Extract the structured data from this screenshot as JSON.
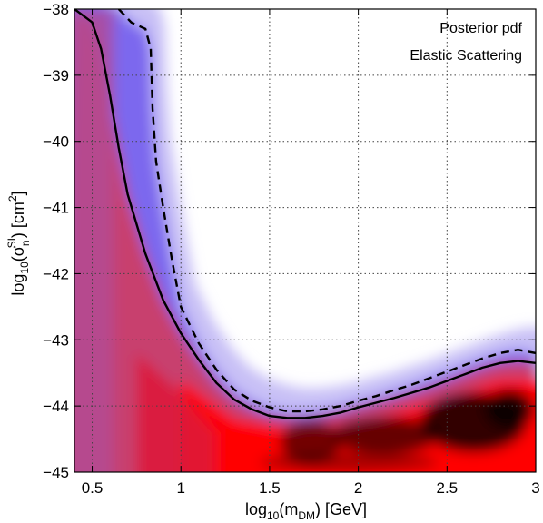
{
  "chart_data": {
    "type": "heatmap",
    "title": "",
    "annotations": [
      "Posterior pdf",
      "Elastic Scattering"
    ],
    "xlabel": {
      "prefix": "log",
      "sub1": "10",
      "mid": "(m",
      "sub2": "DM",
      "suffix": ") [GeV]"
    },
    "ylabel": {
      "prefix": "log",
      "sub1": "10",
      "mid": "(σ",
      "sub2": "n",
      "sup2": "SI",
      "suffix": ") [cm",
      "sup3": "2",
      "end": "]"
    },
    "xlim": [
      0.4,
      3.0
    ],
    "ylim": [
      -45,
      -38
    ],
    "xticks": [
      0.5,
      1,
      1.5,
      2,
      2.5,
      3
    ],
    "xticklabels": [
      "0.5",
      "1",
      "1.5",
      "2",
      "2.5",
      "3"
    ],
    "yticks": [
      -45,
      -44,
      -43,
      -42,
      -41,
      -40,
      -39,
      -38
    ],
    "yticklabels": [
      "−45",
      "−44",
      "−43",
      "−42",
      "−41",
      "−40",
      "−39",
      "−38"
    ],
    "grid": true,
    "colormap": [
      "#ffffff",
      "#7b68ee",
      "#ff0000",
      "#000000"
    ],
    "contours": [
      {
        "style": "solid",
        "points": [
          [
            0.4,
            -38.0
          ],
          [
            0.5,
            -38.2
          ],
          [
            0.55,
            -38.6
          ],
          [
            0.6,
            -39.3
          ],
          [
            0.65,
            -40.1
          ],
          [
            0.7,
            -40.8
          ],
          [
            0.8,
            -41.7
          ],
          [
            0.9,
            -42.4
          ],
          [
            1.0,
            -42.9
          ],
          [
            1.1,
            -43.3
          ],
          [
            1.2,
            -43.65
          ],
          [
            1.3,
            -43.9
          ],
          [
            1.4,
            -44.05
          ],
          [
            1.5,
            -44.15
          ],
          [
            1.6,
            -44.18
          ],
          [
            1.7,
            -44.18
          ],
          [
            1.8,
            -44.15
          ],
          [
            1.9,
            -44.1
          ],
          [
            2.0,
            -44.02
          ],
          [
            2.1,
            -43.95
          ],
          [
            2.2,
            -43.88
          ],
          [
            2.3,
            -43.8
          ],
          [
            2.4,
            -43.72
          ],
          [
            2.5,
            -43.62
          ],
          [
            2.6,
            -43.52
          ],
          [
            2.7,
            -43.42
          ],
          [
            2.8,
            -43.35
          ],
          [
            2.9,
            -43.32
          ],
          [
            3.0,
            -43.35
          ]
        ]
      },
      {
        "style": "dashed",
        "points": [
          [
            0.65,
            -38.0
          ],
          [
            0.72,
            -38.2
          ],
          [
            0.8,
            -38.3
          ],
          [
            0.83,
            -38.6
          ],
          [
            0.84,
            -39.5
          ],
          [
            0.86,
            -40.3
          ],
          [
            0.9,
            -41.0
          ],
          [
            0.95,
            -41.8
          ],
          [
            1.0,
            -42.5
          ],
          [
            1.1,
            -43.05
          ],
          [
            1.2,
            -43.45
          ],
          [
            1.3,
            -43.75
          ],
          [
            1.4,
            -43.92
          ],
          [
            1.5,
            -44.02
          ],
          [
            1.6,
            -44.08
          ],
          [
            1.7,
            -44.08
          ],
          [
            1.8,
            -44.05
          ],
          [
            1.9,
            -44.0
          ],
          [
            2.0,
            -43.92
          ],
          [
            2.1,
            -43.85
          ],
          [
            2.2,
            -43.76
          ],
          [
            2.3,
            -43.68
          ],
          [
            2.4,
            -43.58
          ],
          [
            2.5,
            -43.48
          ],
          [
            2.6,
            -43.38
          ],
          [
            2.7,
            -43.28
          ],
          [
            2.8,
            -43.2
          ],
          [
            2.9,
            -43.15
          ],
          [
            3.0,
            -43.2
          ]
        ]
      }
    ]
  }
}
